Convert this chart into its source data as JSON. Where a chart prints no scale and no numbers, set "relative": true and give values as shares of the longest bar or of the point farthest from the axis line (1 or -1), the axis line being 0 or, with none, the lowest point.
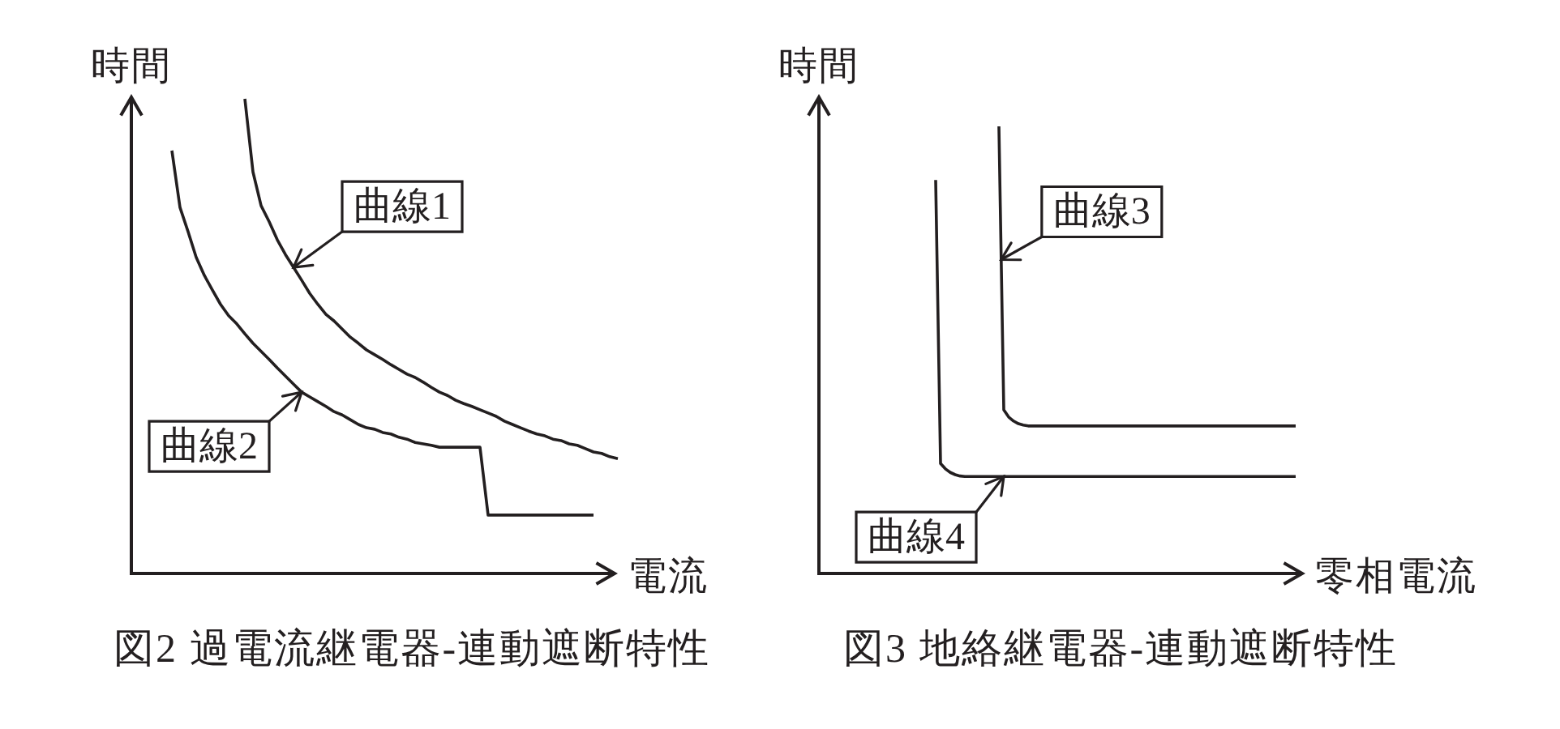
{
  "chart_data": [
    {
      "type": "line",
      "title": "図2 過電流継電器-連動遮断特性",
      "xlabel": "電流",
      "ylabel": "時間",
      "relative": true,
      "categories": [
        null,
        null,
        null,
        null,
        null,
        null,
        null,
        null,
        null,
        null,
        null,
        null,
        null,
        null,
        null,
        null,
        null,
        null,
        null,
        null,
        null,
        null,
        null,
        null,
        null,
        null,
        null,
        null,
        null,
        null,
        null,
        null,
        null,
        null,
        null,
        null,
        null,
        null,
        null,
        null,
        null,
        null,
        null,
        null,
        null,
        null,
        null,
        null,
        null,
        null,
        null,
        null,
        null,
        null,
        null,
        null,
        null,
        null,
        null,
        null,
        null
      ],
      "series": [
        {
          "name": "曲線1",
          "color": "#231f20",
          "values": [
            null,
            null,
            null,
            null,
            null,
            null,
            null,
            null,
            null,
            null,
            null,
            null,
            null,
            null,
            1,
            0.846,
            0.775,
            0.741,
            0.703,
            0.672,
            0.645,
            0.618,
            0.59,
            0.567,
            0.546,
            0.532,
            0.515,
            0.498,
            0.485,
            0.471,
            0.461,
            0.451,
            0.44,
            0.43,
            0.42,
            0.413,
            0.403,
            0.392,
            0.382,
            0.375,
            0.365,
            0.358,
            0.352,
            0.345,
            0.338,
            0.331,
            0.321,
            0.314,
            0.307,
            0.3,
            0.294,
            0.29,
            0.283,
            0.28,
            0.273,
            0.27,
            0.263,
            0.256,
            0.253,
            0.246,
            0.242
          ]
        },
        {
          "name": "曲線2",
          "color": "#231f20",
          "values": [
            null,
            null,
            null,
            null,
            null,
            0.891,
            0.771,
            0.72,
            0.666,
            0.628,
            0.597,
            0.567,
            0.543,
            0.526,
            0.505,
            0.485,
            0.468,
            0.451,
            0.433,
            0.416,
            0.399,
            0.382,
            0.372,
            0.362,
            0.352,
            0.341,
            0.334,
            0.324,
            0.314,
            0.307,
            0.304,
            0.297,
            0.294,
            0.287,
            0.283,
            0.276,
            0.273,
            0.27,
            0.266,
            0.266,
            0.266,
            0.266,
            0.266,
            0.266,
            0.123,
            0.123,
            0.123,
            0.123,
            0.123,
            0.123,
            0.123,
            0.123,
            0.123,
            0.123,
            0.123,
            0.123,
            0.123,
            0.123,
            null,
            null,
            null
          ]
        }
      ]
    },
    {
      "type": "line",
      "title": "図3 地絡継電器-連動遮断特性",
      "xlabel": "零相電流",
      "ylabel": "時間",
      "relative": true,
      "categories": [
        null,
        null,
        null,
        null,
        null,
        null,
        null,
        null,
        null,
        null,
        null,
        null,
        null,
        null,
        null,
        null,
        null,
        null,
        null,
        null,
        null,
        null,
        null,
        null,
        null,
        null,
        null,
        null,
        null,
        null,
        null,
        null,
        null,
        null,
        null,
        null,
        null,
        null,
        null,
        null,
        null,
        null,
        null,
        null,
        null,
        null,
        null,
        null,
        null,
        null,
        null,
        null,
        null,
        null,
        null,
        null,
        null,
        null,
        null,
        null,
        null,
        null,
        null,
        null,
        null,
        null,
        null,
        null,
        null,
        null,
        null,
        null,
        null,
        null,
        null,
        null,
        null,
        null,
        null,
        null,
        null,
        null,
        null,
        null,
        null,
        null,
        null,
        null,
        null,
        null,
        null,
        null,
        null,
        null,
        null,
        null,
        null,
        null,
        null,
        null,
        null
      ],
      "series": [
        {
          "name": "曲線3",
          "color": "#231f20",
          "values": [
            null,
            null,
            null,
            null,
            null,
            null,
            null,
            null,
            null,
            null,
            null,
            null,
            null,
            null,
            null,
            null,
            null,
            null,
            null,
            null,
            null,
            null,
            null,
            null,
            null,
            null,
            null,
            null,
            null,
            null,
            null,
            null,
            null,
            null,
            null,
            null,
            null,
            1,
            0.366,
            0.35,
            0.341,
            0.335,
            0.332,
            0.33,
            0.33,
            0.33,
            0.33,
            0.33,
            0.33,
            0.33,
            0.33,
            0.33,
            0.33,
            0.33,
            0.33,
            0.33,
            0.33,
            0.33,
            0.33,
            0.33,
            0.33,
            0.33,
            0.33,
            0.33,
            0.33,
            0.33,
            0.33,
            0.33,
            0.33,
            0.33,
            0.33,
            0.33,
            0.33,
            0.33,
            0.33,
            0.33,
            0.33,
            0.33,
            0.33,
            0.33,
            0.33,
            0.33,
            0.33,
            0.33,
            0.33,
            0.33,
            0.33,
            0.33,
            0.33,
            0.33,
            0.33,
            0.33,
            0.33,
            0.33,
            0.33,
            0.33,
            0.33,
            0.33,
            0.33,
            null,
            null
          ]
        },
        {
          "name": "曲線4",
          "color": "#231f20",
          "values": [
            null,
            null,
            null,
            null,
            null,
            null,
            null,
            null,
            null,
            null,
            null,
            null,
            null,
            null,
            null,
            null,
            null,
            null,
            null,
            null,
            null,
            null,
            null,
            null,
            0.88,
            0.246,
            0.234,
            0.226,
            0.221,
            0.218,
            0.217,
            0.217,
            0.217,
            0.217,
            0.217,
            0.217,
            0.217,
            0.217,
            0.217,
            0.217,
            0.217,
            0.217,
            0.217,
            0.217,
            0.217,
            0.217,
            0.217,
            0.217,
            0.217,
            0.217,
            0.217,
            0.217,
            0.217,
            0.217,
            0.217,
            0.217,
            0.217,
            0.217,
            0.217,
            0.217,
            0.217,
            0.217,
            0.217,
            0.217,
            0.217,
            0.217,
            0.217,
            0.217,
            0.217,
            0.217,
            0.217,
            0.217,
            0.217,
            0.217,
            0.217,
            0.217,
            0.217,
            0.217,
            0.217,
            0.217,
            0.217,
            0.217,
            0.217,
            0.217,
            0.217,
            0.217,
            0.217,
            0.217,
            0.217,
            0.217,
            0.217,
            0.217,
            0.217,
            0.217,
            0.217,
            0.217,
            0.217,
            0.217,
            0.217,
            null,
            null
          ]
        }
      ]
    }
  ]
}
